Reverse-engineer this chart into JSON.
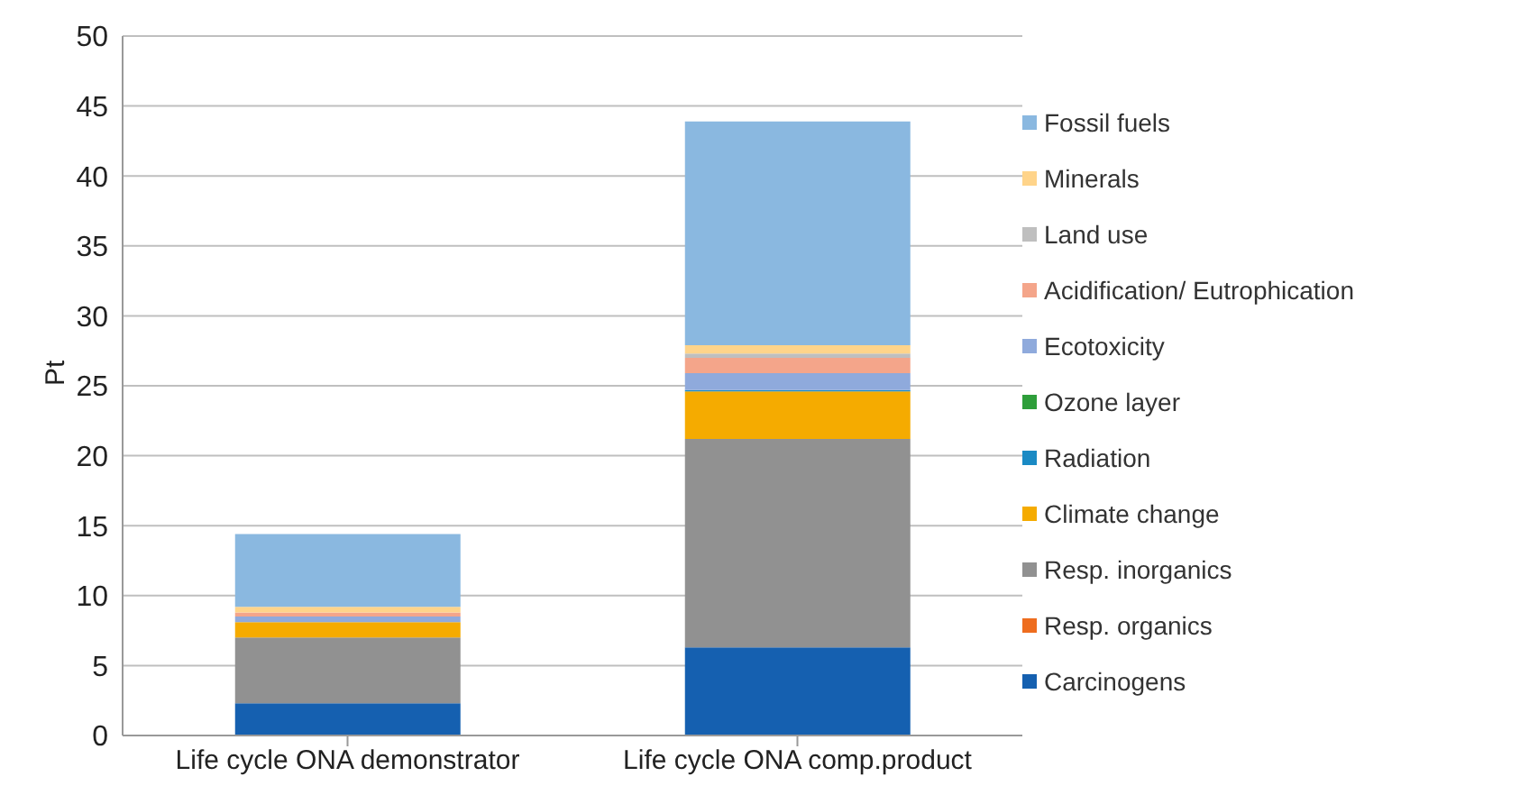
{
  "chart_data": {
    "type": "bar",
    "stacked": true,
    "ylabel": "Pt",
    "categories": [
      "Life cycle ONA demonstrator",
      "Life cycle ONA comp.product"
    ],
    "series": [
      {
        "name": "Carcinogens",
        "color": "#1560b0",
        "values": [
          2.3,
          6.3
        ]
      },
      {
        "name": "Resp. organics",
        "color": "#ee6d1f",
        "values": [
          0,
          0
        ]
      },
      {
        "name": "Resp. inorganics",
        "color": "#919191",
        "values": [
          4.7,
          14.9
        ]
      },
      {
        "name": "Climate change",
        "color": "#f5ab00",
        "values": [
          1.1,
          3.4
        ]
      },
      {
        "name": "Radiation",
        "color": "#1a8ac4",
        "values": [
          0,
          0.1
        ]
      },
      {
        "name": "Ozone layer",
        "color": "#2e9e3a",
        "values": [
          0,
          0
        ]
      },
      {
        "name": "Ecotoxicity",
        "color": "#8faadc",
        "values": [
          0.4,
          1.2
        ]
      },
      {
        "name": "Acidification/ Eutrophication",
        "color": "#f4a58a",
        "values": [
          0.3,
          1.1
        ]
      },
      {
        "name": "Land use",
        "color": "#bfbfbf",
        "values": [
          null,
          0.3
        ]
      },
      {
        "name": "Minerals",
        "color": "#ffd48a",
        "values": [
          0.4,
          0.6
        ]
      },
      {
        "name": "Fossil fuels",
        "color": "#8ab8e0",
        "values": [
          5.2,
          16.0
        ]
      }
    ],
    "ylim": [
      0,
      50
    ],
    "yticks": [
      0,
      5,
      10,
      15,
      20,
      25,
      30,
      35,
      40,
      45,
      50
    ],
    "grid": "y",
    "legend": "right"
  }
}
